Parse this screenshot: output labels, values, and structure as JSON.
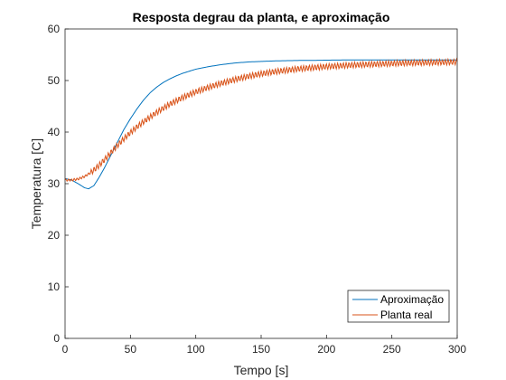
{
  "chart_data": {
    "type": "line",
    "title": "Resposta degrau da planta, e aproximação",
    "xlabel": "Tempo [s]",
    "ylabel": "Temperatura [C]",
    "xlim": [
      0,
      300
    ],
    "ylim": [
      0,
      60
    ],
    "xticks": [
      "0",
      "50",
      "100",
      "150",
      "200",
      "250",
      "300"
    ],
    "yticks": [
      "0",
      "10",
      "20",
      "30",
      "40",
      "50",
      "60"
    ],
    "grid": false,
    "legend_position": "bottom-right",
    "series": [
      {
        "name": "Aproximação",
        "color": "#0072BD",
        "x": [
          0,
          5,
          10,
          15,
          18,
          22,
          26,
          30,
          35,
          40,
          45,
          50,
          55,
          60,
          65,
          70,
          75,
          80,
          85,
          90,
          95,
          100,
          110,
          120,
          130,
          140,
          150,
          160,
          170,
          180,
          190,
          200,
          220,
          240,
          260,
          280,
          300
        ],
        "y": [
          31,
          30.7,
          30,
          29.2,
          29.0,
          29.6,
          31.2,
          33.0,
          35.5,
          38.0,
          40.5,
          42.6,
          44.5,
          46.2,
          47.6,
          48.7,
          49.6,
          50.3,
          50.9,
          51.4,
          51.8,
          52.2,
          52.7,
          53.1,
          53.4,
          53.6,
          53.7,
          53.8,
          53.85,
          53.9,
          53.9,
          53.95,
          54.0,
          54.0,
          54.0,
          54.0,
          54.0
        ]
      },
      {
        "name": "Planta real",
        "color": "#D95319",
        "x": [
          0,
          5,
          10,
          15,
          20,
          25,
          30,
          35,
          40,
          45,
          50,
          55,
          60,
          70,
          80,
          90,
          100,
          110,
          120,
          130,
          140,
          150,
          160,
          170,
          180,
          190,
          200,
          220,
          240,
          260,
          280,
          300
        ],
        "y": [
          30.7,
          30.7,
          30.9,
          31.4,
          32.2,
          33.3,
          34.6,
          36.0,
          37.4,
          38.7,
          39.9,
          41.0,
          42.0,
          43.8,
          45.4,
          46.7,
          47.8,
          48.7,
          49.5,
          50.2,
          50.8,
          51.3,
          51.7,
          52.0,
          52.3,
          52.5,
          52.7,
          53.0,
          53.2,
          53.4,
          53.5,
          53.6
        ]
      }
    ]
  }
}
